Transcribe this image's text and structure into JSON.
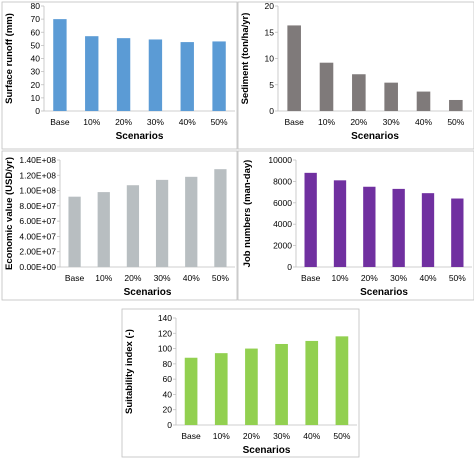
{
  "chart_data": [
    {
      "type": "bar",
      "categories": [
        "Base",
        "10%",
        "20%",
        "30%",
        "40%",
        "50%"
      ],
      "values": [
        70,
        57,
        55.5,
        54.5,
        52.5,
        53
      ],
      "xlabel": "Scenarios",
      "ylabel": "Surface runoff (mm)",
      "ylim": [
        0,
        80
      ],
      "ticks": [
        "0",
        "10",
        "20",
        "30",
        "40",
        "50",
        "60",
        "70",
        "80"
      ],
      "color": "#5b9bd5"
    },
    {
      "type": "bar",
      "categories": [
        "Base",
        "10%",
        "20%",
        "30%",
        "40%",
        "50%"
      ],
      "values": [
        16.3,
        9.2,
        7,
        5.4,
        3.7,
        2.1
      ],
      "xlabel": "Scenarios",
      "ylabel": "Sediment (ton/ha/yr)",
      "ylim": [
        0,
        20
      ],
      "ticks": [
        "0",
        "5",
        "10",
        "15",
        "20"
      ],
      "color": "#7f7a7a"
    },
    {
      "type": "bar",
      "categories": [
        "Base",
        "10%",
        "20%",
        "30%",
        "40%",
        "50%"
      ],
      "values": [
        92000000,
        98000000,
        107000000,
        114000000,
        118000000,
        128000000
      ],
      "xlabel": "Scenarios",
      "ylabel": "Economic value (USD/yr)",
      "ylim": [
        0,
        140000000
      ],
      "ticks": [
        "0.00E+00",
        "2.00E+07",
        "4.00E+07",
        "6.00E+07",
        "8.00E+07",
        "1.00E+08",
        "1.20E+08",
        "1.40E+08"
      ],
      "color": "#b8bec1"
    },
    {
      "type": "bar",
      "categories": [
        "Base",
        "10%",
        "20%",
        "30%",
        "40%",
        "50%"
      ],
      "values": [
        8800,
        8100,
        7500,
        7300,
        6900,
        6400
      ],
      "xlabel": "Scenarios",
      "ylabel": "Job numbers (man-day)",
      "ylim": [
        0,
        10000
      ],
      "ticks": [
        "0",
        "2000",
        "4000",
        "6000",
        "8000",
        "10000"
      ],
      "color": "#7030a0"
    },
    {
      "type": "bar",
      "categories": [
        "Base",
        "10%",
        "20%",
        "30%",
        "40%",
        "50%"
      ],
      "values": [
        88,
        94,
        100,
        106,
        110,
        116
      ],
      "xlabel": "Scenarios",
      "ylabel": "Suitability index (-)",
      "ylim": [
        0,
        140
      ],
      "ticks": [
        "0",
        "20",
        "40",
        "60",
        "80",
        "100",
        "120",
        "140"
      ],
      "color": "#92d050"
    }
  ]
}
